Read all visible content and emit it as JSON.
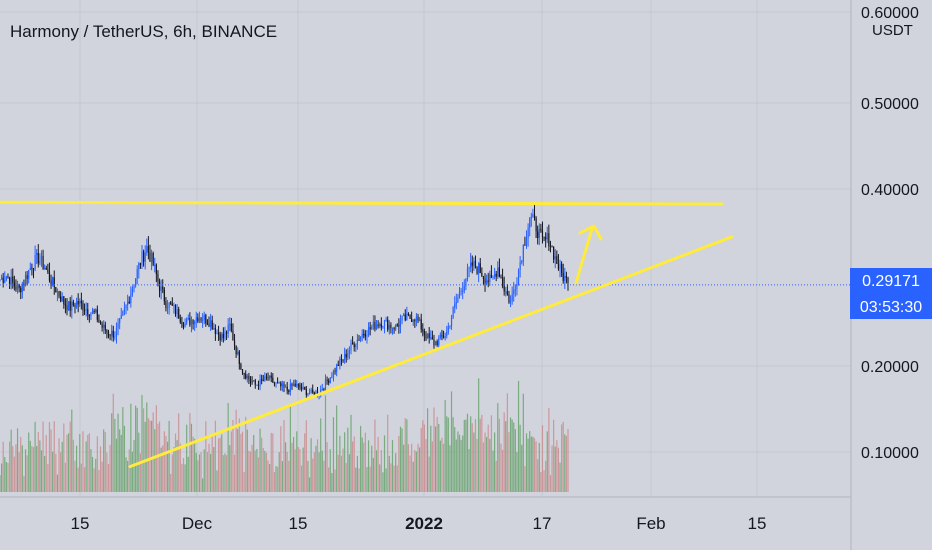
{
  "header": {
    "symbol_title": "Harmony / TetherUS, 6h, BINANCE",
    "currency": "USDT"
  },
  "price_label": {
    "value": "0.29171",
    "countdown": "03:53:30"
  },
  "colors": {
    "background": "#d1d4dc",
    "grid": "#c4c7cf",
    "candle_up": "#2962ff",
    "candle_down": "#131722",
    "volume_up": "#6aa36f",
    "volume_down": "#c98d8f",
    "trendline": "#ffeb3b",
    "price_line": "#2962ff"
  },
  "chart_data": {
    "type": "candlestick",
    "y_axis": {
      "ticks": [
        "0.60000",
        "0.50000",
        "0.40000",
        "0.20000",
        "0.10000"
      ],
      "tick_values": [
        0.6,
        0.5,
        0.4,
        0.2,
        0.1
      ],
      "ylim": [
        0.04,
        0.61
      ]
    },
    "x_axis": {
      "ticks": [
        {
          "label": "15",
          "bold": false
        },
        {
          "label": "Dec",
          "bold": false
        },
        {
          "label": "15",
          "bold": false
        },
        {
          "label": "2022",
          "bold": true
        },
        {
          "label": "17",
          "bold": false
        },
        {
          "label": "Feb",
          "bold": false
        },
        {
          "label": "15",
          "bold": false
        }
      ]
    },
    "close_series": [
      0.298,
      0.302,
      0.293,
      0.286,
      0.3,
      0.315,
      0.322,
      0.312,
      0.296,
      0.284,
      0.272,
      0.266,
      0.272,
      0.268,
      0.262,
      0.258,
      0.244,
      0.238,
      0.236,
      0.252,
      0.272,
      0.295,
      0.318,
      0.334,
      0.315,
      0.29,
      0.272,
      0.266,
      0.258,
      0.248,
      0.252,
      0.256,
      0.254,
      0.25,
      0.238,
      0.232,
      0.245,
      0.218,
      0.195,
      0.185,
      0.178,
      0.182,
      0.186,
      0.18,
      0.176,
      0.172,
      0.178,
      0.175,
      0.17,
      0.168,
      0.17,
      0.18,
      0.19,
      0.202,
      0.21,
      0.222,
      0.23,
      0.238,
      0.242,
      0.248,
      0.25,
      0.246,
      0.244,
      0.252,
      0.254,
      0.256,
      0.244,
      0.232,
      0.226,
      0.23,
      0.238,
      0.262,
      0.282,
      0.3,
      0.314,
      0.31,
      0.3,
      0.295,
      0.312,
      0.288,
      0.272,
      0.3,
      0.335,
      0.368,
      0.358,
      0.34,
      0.344,
      0.322,
      0.304,
      0.294
    ],
    "trendlines": [
      {
        "name": "resistance",
        "points": [
          [
            0,
            0.385
          ],
          [
            722,
            0.383
          ]
        ]
      },
      {
        "name": "support",
        "points": [
          [
            130,
            0.083
          ],
          [
            732,
            0.346
          ]
        ]
      }
    ],
    "annotation": "up-arrow"
  }
}
